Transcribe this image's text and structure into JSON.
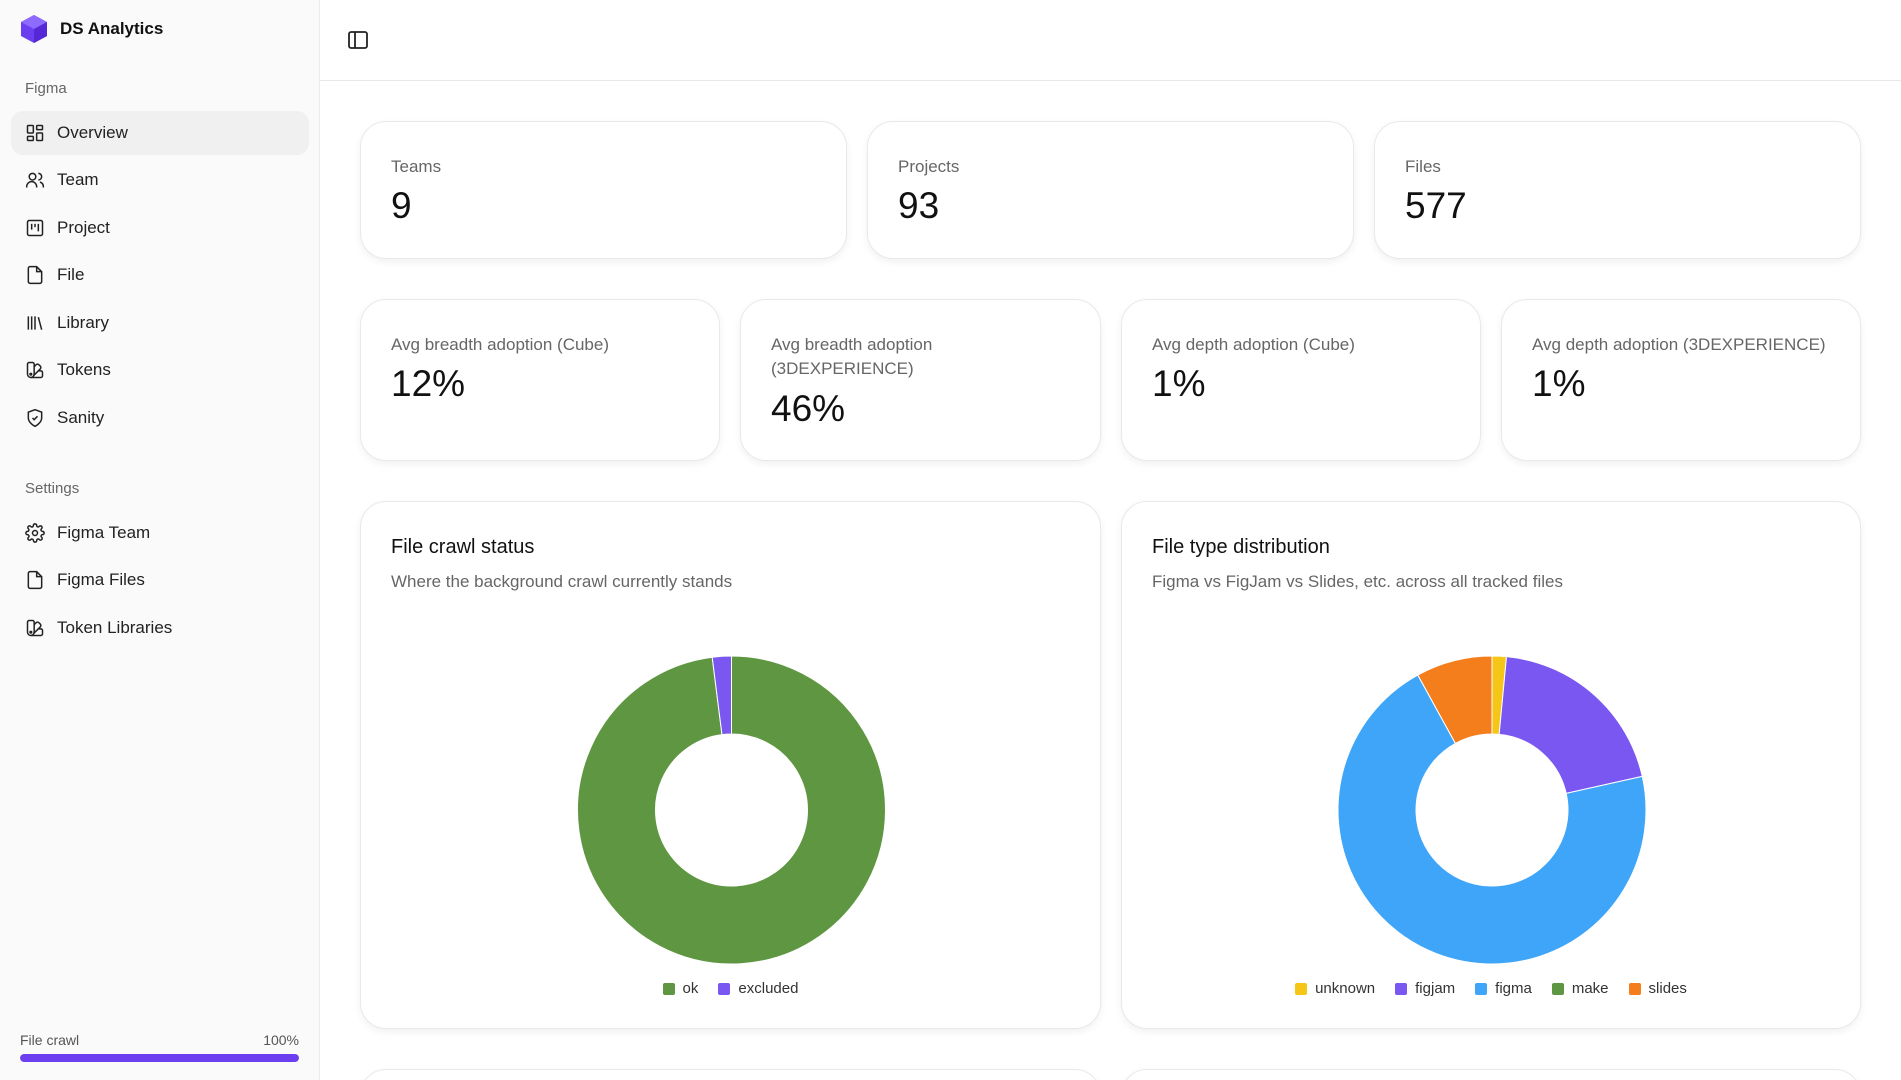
{
  "brand": {
    "name": "DS Analytics",
    "accent": "#6b3ff0"
  },
  "sidebar": {
    "section_figma": "Figma",
    "figma_items": [
      {
        "label": "Overview",
        "icon": "grid-icon"
      },
      {
        "label": "Team",
        "icon": "users-icon"
      },
      {
        "label": "Project",
        "icon": "kanban-icon"
      },
      {
        "label": "File",
        "icon": "file-icon"
      },
      {
        "label": "Library",
        "icon": "library-icon"
      },
      {
        "label": "Tokens",
        "icon": "swatch-book-icon"
      },
      {
        "label": "Sanity",
        "icon": "shield-check-icon"
      }
    ],
    "section_settings": "Settings",
    "settings_items": [
      {
        "label": "Figma Team",
        "icon": "gear-icon"
      },
      {
        "label": "Figma Files",
        "icon": "file-icon"
      },
      {
        "label": "Token Libraries",
        "icon": "swatch-book-icon"
      }
    ],
    "crawl": {
      "label": "File crawl",
      "percent_label": "100%",
      "progress": 1.0
    }
  },
  "stats_row1": [
    {
      "label": "Teams",
      "value": "9"
    },
    {
      "label": "Projects",
      "value": "93"
    },
    {
      "label": "Files",
      "value": "577"
    }
  ],
  "stats_row2": [
    {
      "label": "Avg breadth adoption (Cube)",
      "value": "12%"
    },
    {
      "label": "Avg breadth adoption (3DEXPERIENCE)",
      "value": "46%"
    },
    {
      "label": "Avg depth adoption (Cube)",
      "value": "1%"
    },
    {
      "label": "Avg depth adoption (3DEXPERIENCE)",
      "value": "1%"
    }
  ],
  "charts": {
    "crawl_status": {
      "title": "File crawl status",
      "subtitle": "Where the background crawl currently stands"
    },
    "file_type": {
      "title": "File type distribution",
      "subtitle": "Figma vs FigJam vs Slides, etc. across all tracked files"
    }
  },
  "chart_data": [
    {
      "type": "pie",
      "title": "File crawl status",
      "categories": [
        "ok",
        "excluded"
      ],
      "values": [
        98,
        2
      ],
      "colors": [
        "#5f9642",
        "#7a57f0"
      ],
      "legend": [
        "ok",
        "excluded"
      ],
      "legend_position": "bottom",
      "donut": true
    },
    {
      "type": "pie",
      "title": "File type distribution",
      "categories": [
        "unknown",
        "figjam",
        "figma",
        "make",
        "slides"
      ],
      "values": [
        1.5,
        20,
        70.5,
        0,
        8
      ],
      "colors": [
        "#f5c518",
        "#7a57f0",
        "#3fa5f8",
        "#5f9642",
        "#f47e1c"
      ],
      "legend": [
        "unknown",
        "figjam",
        "figma",
        "make",
        "slides"
      ],
      "legend_position": "bottom",
      "donut": true
    }
  ]
}
